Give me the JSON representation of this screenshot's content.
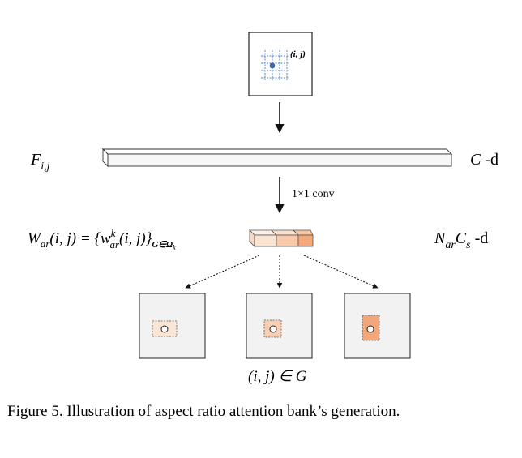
{
  "figure": {
    "pixel_label": "(i, j)",
    "feature_label": "F",
    "feature_subscript": "i,j",
    "channel_label_var": "C",
    "channel_label_suffix": " -d",
    "conv_label": "1×1 conv",
    "weights_label": {
      "lhs": "W",
      "lhs_sub": "ar",
      "args": "(i, j) = {w",
      "sup": "k",
      "sub2": "ar",
      "args2": "(i, j)}",
      "set_sub": "G∈Ω",
      "set_sub_k": "k"
    },
    "output_label": {
      "n": "N",
      "n_sub": "ar",
      "c": "C",
      "c_sub": "s",
      "suffix": " -d"
    },
    "membership_label": "(i, j) ∈ G",
    "colors": {
      "cube_light": "#fbe3d2",
      "cube_mid": "#f7c9a8",
      "cube_dark": "#f2a878",
      "patch_1": "#fbe6d6",
      "patch_2": "#f8cfb2",
      "patch_3": "#f1a77a",
      "grid_blue": "#4a7fc1",
      "panel_bg": "#f2f2f2"
    }
  },
  "caption": "Figure 5. Illustration of aspect ratio attention bank’s generation."
}
